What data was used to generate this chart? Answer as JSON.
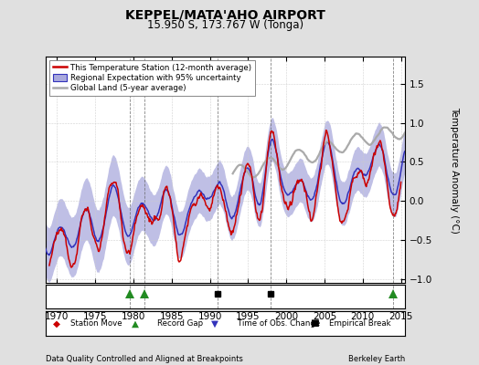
{
  "title": "KEPPEL/MATA'AHO AIRPORT",
  "subtitle": "15.950 S, 173.767 W (Tonga)",
  "ylabel": "Temperature Anomaly (°C)",
  "xlabel_left": "Data Quality Controlled and Aligned at Breakpoints",
  "xlabel_right": "Berkeley Earth",
  "xlim": [
    1968.5,
    2015.5
  ],
  "ylim": [
    -1.05,
    1.85
  ],
  "yticks": [
    -1,
    -0.5,
    0,
    0.5,
    1,
    1.5
  ],
  "xticks": [
    1970,
    1975,
    1980,
    1985,
    1990,
    1995,
    2000,
    2005,
    2010,
    2015
  ],
  "background_color": "#e0e0e0",
  "plot_bg_color": "#ffffff",
  "station_color": "#cc0000",
  "regional_color": "#3333bb",
  "regional_fill_color": "#aaaadd",
  "global_color": "#aaaaaa",
  "triangle_up_years": [
    1979.5,
    1981.5,
    2014.0
  ],
  "square_years": [
    1991.0,
    1998.0
  ]
}
